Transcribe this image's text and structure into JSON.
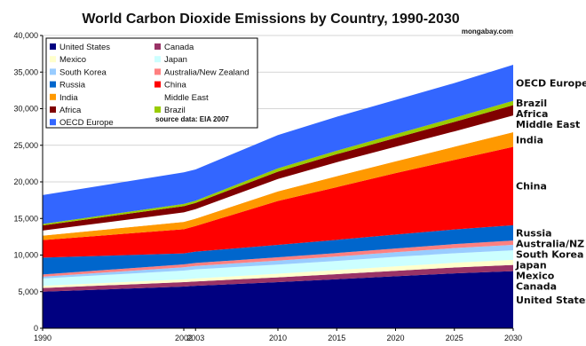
{
  "chart_data": {
    "type": "area",
    "stacked": true,
    "title": "World Carbon Dioxide Emissions by Country, 1990-2030",
    "credit": "mongabay.com",
    "source_note": "source data: EIA 2007",
    "x": [
      1990,
      2002,
      2003,
      2010,
      2015,
      2020,
      2025,
      2030
    ],
    "xlim": [
      1990,
      2030
    ],
    "ylim": [
      0,
      40000
    ],
    "y_ticks": [
      0,
      5000,
      10000,
      15000,
      20000,
      25000,
      30000,
      35000,
      40000
    ],
    "y_tick_labels": [
      "0",
      "5,000",
      "10,000",
      "15,000",
      "20,000",
      "25,000",
      "30,000",
      "35,000",
      "40,000"
    ],
    "x_tick_labels": [
      "1990",
      "2002",
      "2003",
      "2010",
      "2015",
      "2020",
      "2025",
      "2030"
    ],
    "grid": "horizontal",
    "legend_position": "top-left",
    "series": [
      {
        "name": "United States",
        "color": "#000080",
        "values": [
          5000,
          5700,
          5800,
          6300,
          6700,
          7100,
          7500,
          7800
        ]
      },
      {
        "name": "Canada",
        "color": "#993366",
        "values": [
          500,
          600,
          600,
          650,
          700,
          750,
          800,
          850
        ]
      },
      {
        "name": "Mexico",
        "color": "#ffffcc",
        "values": [
          300,
          380,
          400,
          500,
          550,
          600,
          650,
          700
        ]
      },
      {
        "name": "Japan",
        "color": "#ccffff",
        "values": [
          1000,
          1200,
          1250,
          1250,
          1250,
          1300,
          1300,
          1300
        ]
      },
      {
        "name": "South Korea",
        "color": "#99ccff",
        "values": [
          250,
          450,
          470,
          550,
          600,
          650,
          700,
          750
        ]
      },
      {
        "name": "Australia/New Zealand",
        "color": "#ff8080",
        "values": [
          300,
          400,
          400,
          450,
          480,
          500,
          550,
          580
        ]
      },
      {
        "name": "Russia",
        "color": "#0066cc",
        "values": [
          2300,
          1500,
          1550,
          1700,
          1800,
          1900,
          2000,
          2100
        ]
      },
      {
        "name": "China",
        "color": "#ff0000",
        "values": [
          2400,
          3300,
          3500,
          6000,
          7200,
          8400,
          9500,
          10700
        ]
      },
      {
        "name": "India",
        "color": "#ff9900",
        "values": [
          600,
          1000,
          1000,
          1300,
          1500,
          1600,
          1800,
          2000
        ]
      },
      {
        "name": "Middle East",
        "color": "#ffffff",
        "values": [
          700,
          1300,
          1300,
          1700,
          1900,
          2000,
          2100,
          2300
        ]
      },
      {
        "name": "Africa",
        "color": "#800000",
        "values": [
          700,
          850,
          850,
          1000,
          1100,
          1200,
          1300,
          1400
        ]
      },
      {
        "name": "Brazil",
        "color": "#99cc00",
        "values": [
          200,
          300,
          300,
          450,
          480,
          520,
          560,
          600
        ]
      },
      {
        "name": "OECD Europe",
        "color": "#3366ff",
        "values": [
          3950,
          4320,
          4280,
          4550,
          4640,
          4680,
          4740,
          4920
        ]
      }
    ],
    "right_labels": [
      "OECD Europe",
      "Brazil",
      "Africa",
      "Middle East",
      "India",
      "China",
      "Russia",
      "Australia/NZ",
      "South Korea",
      "Japan",
      "Mexico",
      "Canada",
      "United States"
    ]
  }
}
